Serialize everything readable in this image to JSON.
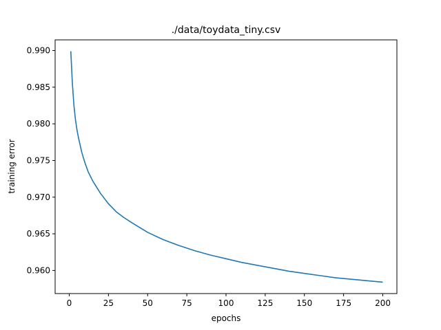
{
  "chart_data": {
    "type": "line",
    "title": "./data/toydata_tiny.csv",
    "xlabel": "epochs",
    "ylabel": "training error",
    "xlim": [
      -9,
      209
    ],
    "ylim": [
      0.95685,
      0.99145
    ],
    "xticks": [
      0,
      25,
      50,
      75,
      100,
      125,
      150,
      175,
      200
    ],
    "xtick_labels": [
      "0",
      "25",
      "50",
      "75",
      "100",
      "125",
      "150",
      "175",
      "200"
    ],
    "yticks": [
      0.96,
      0.965,
      0.97,
      0.975,
      0.98,
      0.985,
      0.99
    ],
    "ytick_labels": [
      "0.960",
      "0.965",
      "0.970",
      "0.975",
      "0.980",
      "0.985",
      "0.990"
    ],
    "grid": false,
    "legend": false,
    "series": [
      {
        "color": "#1f77b4",
        "x": [
          1,
          2,
          3,
          4,
          5,
          6,
          8,
          10,
          12,
          15,
          20,
          25,
          30,
          35,
          40,
          50,
          60,
          70,
          80,
          90,
          100,
          110,
          120,
          130,
          140,
          150,
          160,
          170,
          180,
          190,
          200
        ],
        "y": [
          0.9899,
          0.9855,
          0.9825,
          0.9805,
          0.9791,
          0.978,
          0.9761,
          0.9747,
          0.9735,
          0.9722,
          0.9705,
          0.9691,
          0.968,
          0.9672,
          0.9665,
          0.9652,
          0.9642,
          0.9634,
          0.9627,
          0.9621,
          0.9616,
          0.9611,
          0.9607,
          0.9603,
          0.9599,
          0.9596,
          0.9593,
          0.959,
          0.9588,
          0.9586,
          0.9584
        ]
      }
    ]
  }
}
